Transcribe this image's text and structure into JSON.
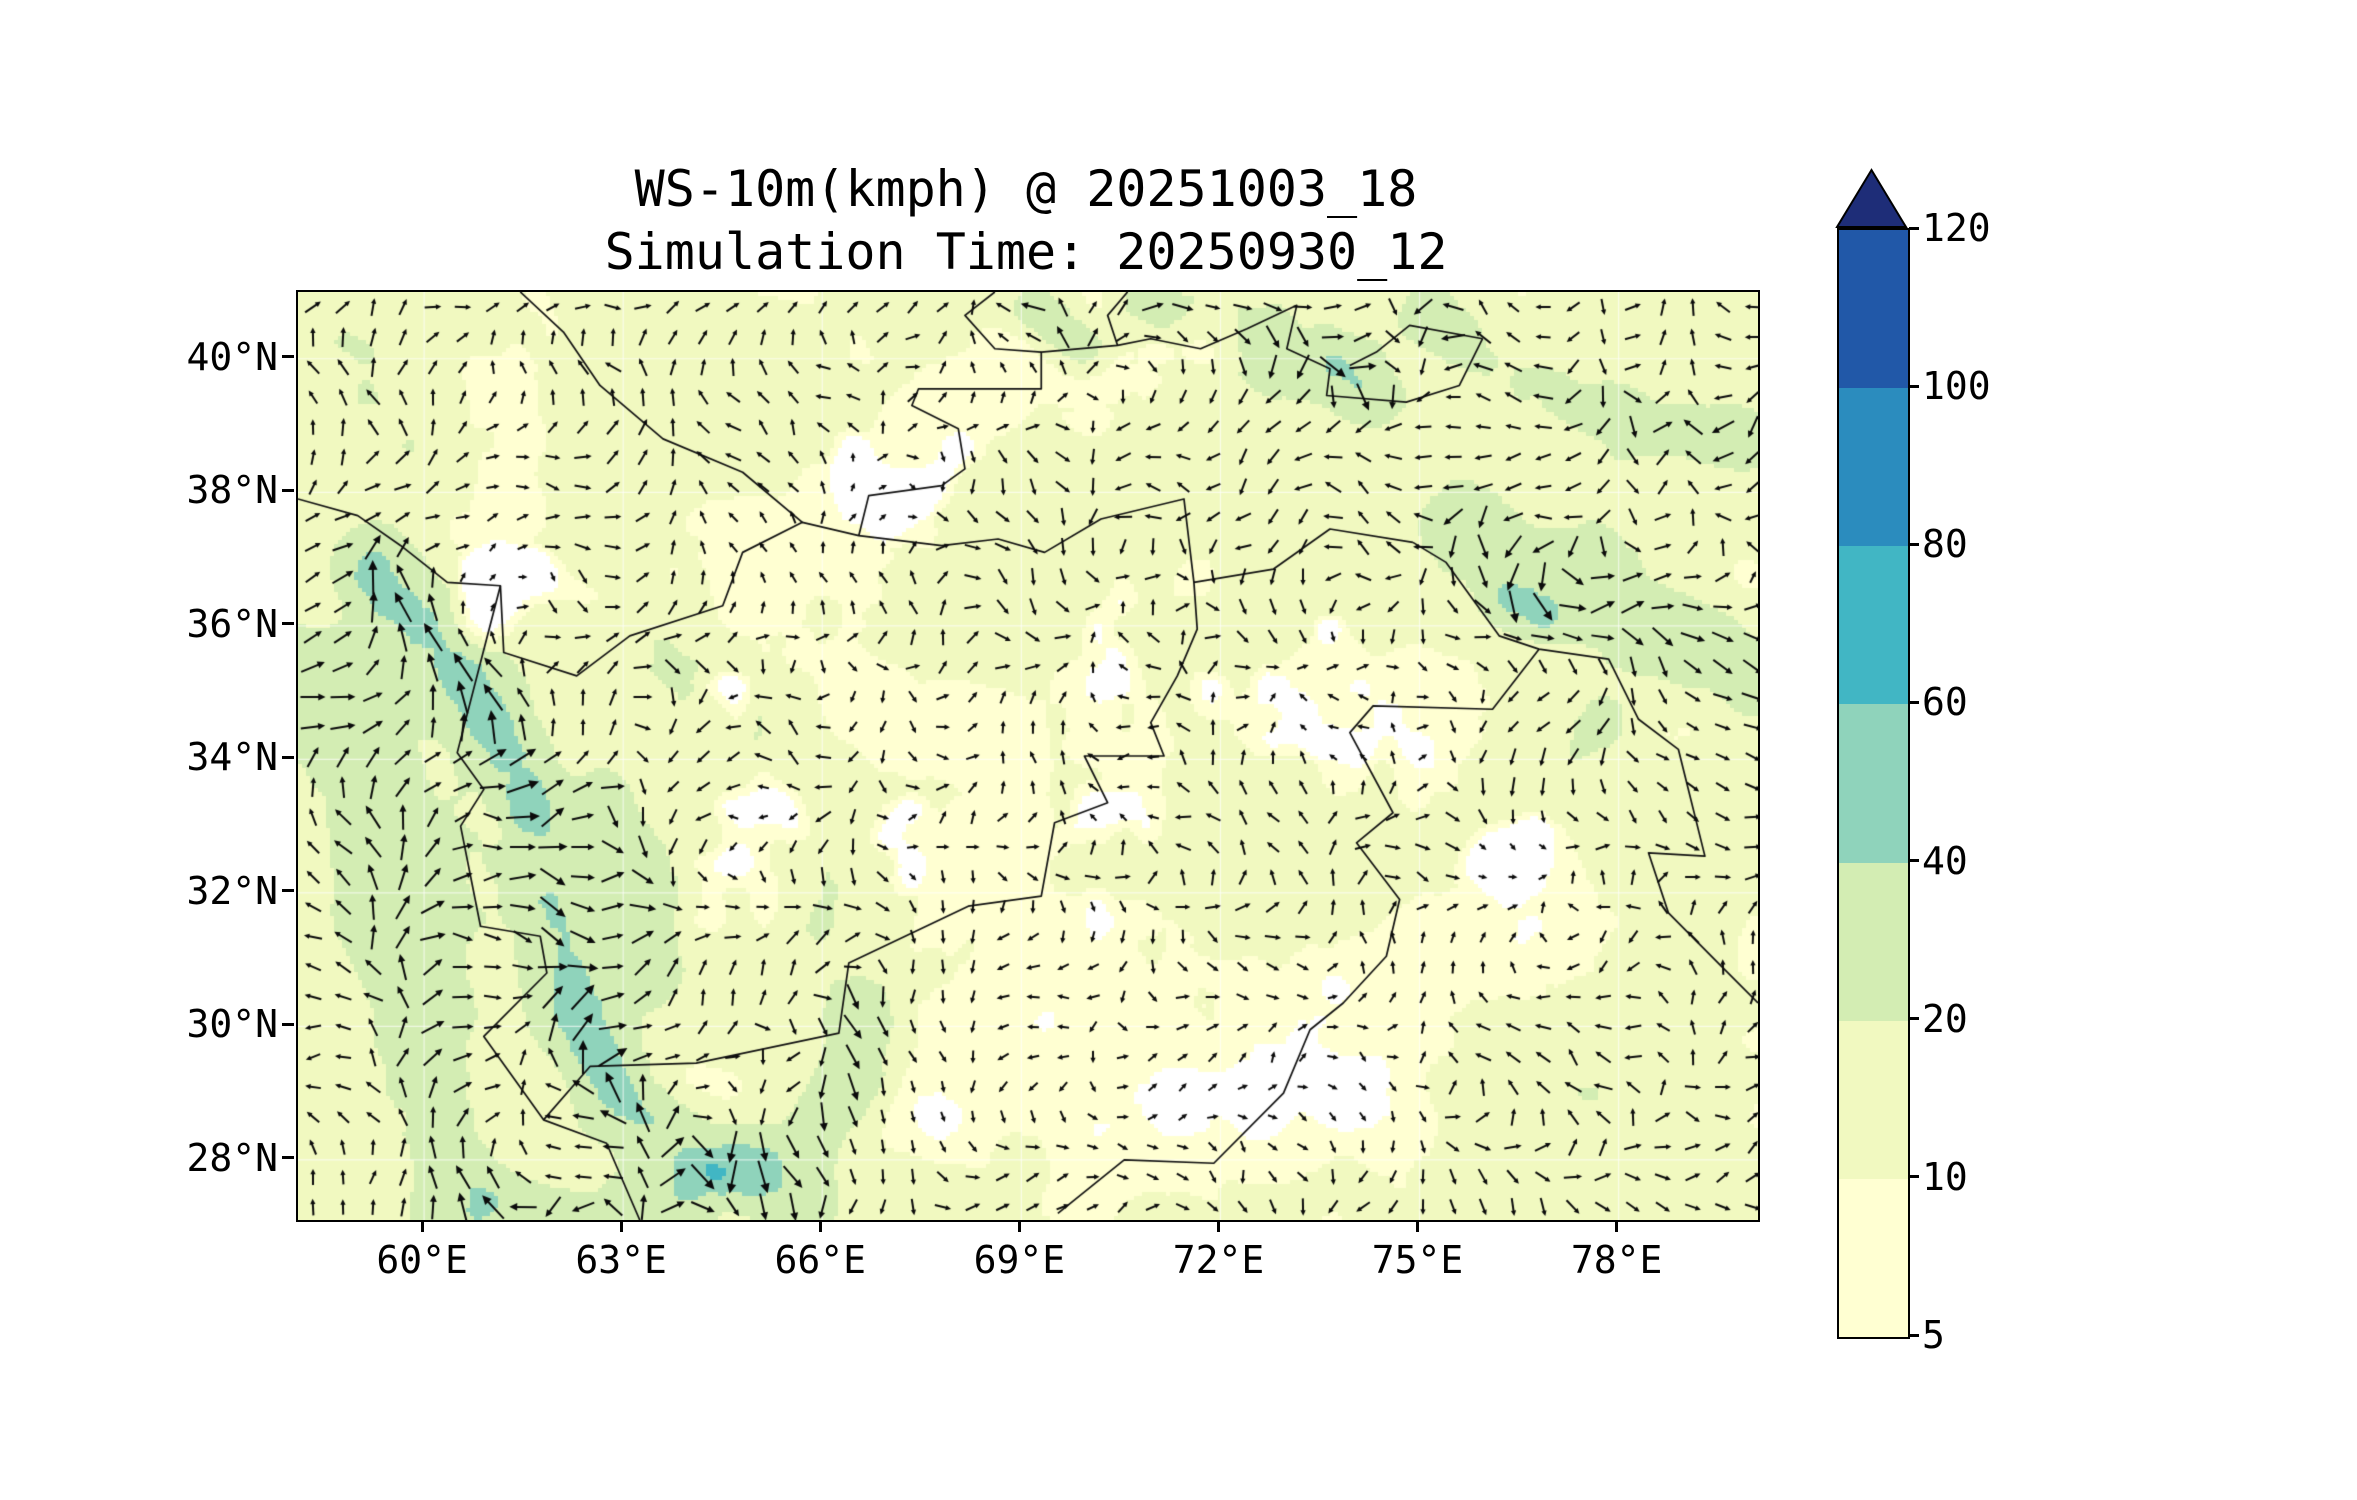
{
  "title": {
    "line1": "WS-10m(kmph) @ 20251003_18",
    "line2": "Simulation Time: 20250930_12"
  },
  "axes": {
    "x_tick_labels": [
      "60°E",
      "63°E",
      "66°E",
      "69°E",
      "72°E",
      "75°E",
      "78°E"
    ],
    "y_tick_labels": [
      "40°N",
      "38°N",
      "36°N",
      "34°N",
      "32°N",
      "30°N",
      "28°N"
    ]
  },
  "colorbar": {
    "tick_labels": [
      "120",
      "100",
      "80",
      "60",
      "40",
      "20",
      "10",
      "5"
    ],
    "colors": [
      "#ffffd2",
      "#f1f9c0",
      "#d3edb3",
      "#8fd3bb",
      "#41b6c4",
      "#2b8cbe",
      "#2158a8"
    ],
    "extend_color": "#1e2d78"
  },
  "chart_data": {
    "type": "heatmap",
    "subtype": "filled-contour 10m wind speed map with quiver wind-direction arrows and political boundaries",
    "title": "WS-10m(kmph) @ 20251003_18",
    "subtitle": "Simulation Time: 20250930_12",
    "variable": "10 m wind speed",
    "units": "kmph",
    "x_range_deg_east": [
      58.1,
      80.1
    ],
    "y_range_deg_north": [
      27.1,
      41.0
    ],
    "x_ticks_deg_east": [
      60,
      63,
      66,
      69,
      72,
      75,
      78
    ],
    "y_ticks_deg_north": [
      40,
      38,
      36,
      34,
      32,
      30,
      28
    ],
    "contour_levels_kmph": [
      5,
      10,
      20,
      40,
      60,
      80,
      100,
      120
    ],
    "under_color": "#ffffff",
    "grid": true,
    "legend_position": "right-colorbar-extend-max",
    "arrow_color": "#0b0b0b",
    "boundary_color": "#111111",
    "high_wind_bands": [
      {
        "path": [
          [
            59.3,
            36.8
          ],
          [
            60.2,
            35.6
          ],
          [
            61.0,
            34.5
          ],
          [
            61.6,
            33.2
          ],
          [
            61.9,
            31.8
          ],
          [
            62.3,
            30.2
          ],
          [
            63.0,
            28.8
          ],
          [
            64.2,
            27.9
          ],
          [
            65.6,
            27.4
          ]
        ],
        "width_deg": 0.55,
        "peak_kmph": 34
      },
      {
        "path": [
          [
            58.2,
            35.2
          ],
          [
            59.2,
            33.6
          ],
          [
            59.7,
            32.0
          ],
          [
            59.9,
            30.2
          ],
          [
            60.3,
            28.4
          ],
          [
            60.4,
            27.2
          ]
        ],
        "width_deg": 0.75,
        "peak_kmph": 18
      },
      {
        "path": [
          [
            61.0,
            27.4
          ],
          [
            62.5,
            27.05
          ],
          [
            64.3,
            27.6
          ],
          [
            65.8,
            28.4
          ],
          [
            66.5,
            29.3
          ],
          [
            66.6,
            30.2
          ]
        ],
        "width_deg": 0.5,
        "peak_kmph": 24
      },
      {
        "path": [
          [
            63.5,
            30.8
          ],
          [
            63.1,
            32.2
          ],
          [
            62.7,
            33.5
          ]
        ],
        "width_deg": 0.45,
        "peak_kmph": 16
      },
      {
        "path": [
          [
            75.6,
            37.6
          ],
          [
            76.6,
            36.9
          ],
          [
            77.7,
            36.3
          ],
          [
            78.9,
            35.7
          ],
          [
            79.9,
            35.2
          ]
        ],
        "width_deg": 0.6,
        "peak_kmph": 22
      },
      {
        "path": [
          [
            75.2,
            40.6
          ],
          [
            76.2,
            39.9
          ],
          [
            77.3,
            39.4
          ],
          [
            78.6,
            39.0
          ],
          [
            79.9,
            38.8
          ]
        ],
        "width_deg": 0.5,
        "peak_kmph": 17
      },
      {
        "path": [
          [
            70.8,
            40.9
          ],
          [
            71.9,
            40.4
          ],
          [
            73.1,
            40.0
          ]
        ],
        "width_deg": 0.45,
        "peak_kmph": 13
      },
      {
        "path": [
          [
            63.8,
            35.2
          ],
          [
            64.8,
            34.3
          ],
          [
            65.5,
            33.2
          ],
          [
            65.8,
            32.0
          ]
        ],
        "width_deg": 0.85,
        "peak_kmph": 10
      },
      {
        "path": [
          [
            65.9,
            36.3
          ],
          [
            67.4,
            35.9
          ],
          [
            69.0,
            36.1
          ]
        ],
        "width_deg": 0.7,
        "peak_kmph": 8
      },
      {
        "path": [
          [
            75.8,
            33.1
          ],
          [
            76.8,
            33.9
          ],
          [
            77.8,
            34.6
          ]
        ],
        "width_deg": 0.55,
        "peak_kmph": 13
      },
      {
        "path": [
          [
            69.2,
            40.7
          ],
          [
            69.9,
            40.2
          ]
        ],
        "width_deg": 0.35,
        "peak_kmph": 24
      },
      {
        "path": [
          [
            73.8,
            39.9
          ],
          [
            74.4,
            39.4
          ]
        ],
        "width_deg": 0.35,
        "peak_kmph": 22
      },
      {
        "path": [
          [
            58.2,
            40.9
          ],
          [
            59.0,
            39.7
          ],
          [
            59.6,
            38.5
          ]
        ],
        "width_deg": 1.1,
        "peak_kmph": 8
      },
      {
        "path": [
          [
            76.3,
            36.4
          ],
          [
            76.9,
            36.1
          ]
        ],
        "width_deg": 0.3,
        "peak_kmph": 26
      }
    ],
    "boundaries": [
      [
        [
          58.1,
          37.9
        ],
        [
          59.0,
          37.65
        ],
        [
          59.65,
          37.2
        ],
        [
          60.35,
          36.65
        ],
        [
          61.15,
          36.6
        ],
        [
          61.2,
          35.6
        ],
        [
          62.3,
          35.25
        ],
        [
          63.1,
          35.85
        ],
        [
          64.5,
          36.3
        ],
        [
          64.8,
          37.1
        ],
        [
          65.7,
          37.55
        ],
        [
          66.55,
          37.35
        ],
        [
          67.8,
          37.2
        ],
        [
          68.65,
          37.3
        ],
        [
          69.35,
          37.1
        ],
        [
          70.2,
          37.6
        ],
        [
          71.45,
          37.9
        ],
        [
          71.6,
          36.65
        ],
        [
          72.8,
          36.85
        ],
        [
          73.65,
          37.45
        ],
        [
          74.9,
          37.25
        ]
      ],
      [
        [
          61.15,
          36.6
        ],
        [
          60.85,
          35.45
        ],
        [
          60.5,
          34.1
        ],
        [
          60.9,
          33.55
        ],
        [
          60.55,
          33.0
        ],
        [
          60.85,
          31.5
        ],
        [
          61.75,
          31.35
        ],
        [
          61.85,
          30.8
        ],
        [
          60.9,
          29.85
        ],
        [
          61.8,
          28.6
        ],
        [
          62.75,
          28.25
        ],
        [
          63.25,
          27.1
        ]
      ],
      [
        [
          71.6,
          36.65
        ],
        [
          71.65,
          35.95
        ],
        [
          71.35,
          35.25
        ],
        [
          70.95,
          34.55
        ],
        [
          71.15,
          34.05
        ],
        [
          69.95,
          34.05
        ],
        [
          70.3,
          33.35
        ],
        [
          69.5,
          33.05
        ],
        [
          69.3,
          31.95
        ],
        [
          68.2,
          31.8
        ],
        [
          66.4,
          30.95
        ],
        [
          66.25,
          29.9
        ],
        [
          64.1,
          29.45
        ],
        [
          62.5,
          29.4
        ],
        [
          61.8,
          28.6
        ]
      ],
      [
        [
          76.8,
          35.65
        ],
        [
          76.1,
          34.75
        ],
        [
          74.3,
          34.8
        ],
        [
          73.95,
          34.4
        ],
        [
          74.6,
          33.2
        ],
        [
          74.05,
          32.75
        ],
        [
          74.7,
          31.9
        ],
        [
          74.5,
          31.05
        ],
        [
          73.85,
          30.35
        ],
        [
          73.35,
          29.95
        ],
        [
          72.95,
          29.0
        ],
        [
          71.9,
          27.95
        ],
        [
          70.55,
          28.0
        ],
        [
          69.55,
          27.2
        ]
      ],
      [
        [
          66.55,
          37.35
        ],
        [
          66.7,
          37.95
        ],
        [
          67.8,
          38.1
        ],
        [
          68.15,
          38.35
        ],
        [
          68.05,
          38.95
        ],
        [
          67.35,
          39.3
        ],
        [
          67.45,
          39.55
        ],
        [
          68.55,
          39.55
        ],
        [
          69.3,
          39.55
        ],
        [
          69.3,
          40.1
        ],
        [
          70.45,
          40.2
        ],
        [
          70.95,
          40.3
        ],
        [
          71.7,
          40.15
        ],
        [
          72.4,
          40.45
        ],
        [
          73.15,
          40.8
        ],
        [
          73.0,
          40.15
        ],
        [
          73.65,
          39.85
        ],
        [
          73.6,
          39.45
        ],
        [
          74.8,
          39.35
        ],
        [
          75.6,
          39.6
        ],
        [
          75.95,
          40.3
        ]
      ],
      [
        [
          70.45,
          40.2
        ],
        [
          70.3,
          40.65
        ],
        [
          70.6,
          41.0
        ]
      ],
      [
        [
          69.3,
          40.1
        ],
        [
          68.6,
          40.15
        ],
        [
          68.15,
          40.65
        ],
        [
          68.6,
          41.0
        ]
      ],
      [
        [
          74.9,
          37.25
        ],
        [
          75.4,
          36.95
        ],
        [
          76.2,
          35.85
        ],
        [
          76.8,
          35.65
        ],
        [
          77.85,
          35.5
        ],
        [
          78.3,
          34.6
        ],
        [
          78.9,
          34.15
        ],
        [
          79.3,
          32.55
        ],
        [
          78.45,
          32.6
        ],
        [
          78.75,
          31.7
        ],
        [
          79.55,
          30.9
        ],
        [
          80.1,
          30.35
        ]
      ],
      [
        [
          65.7,
          37.55
        ],
        [
          64.8,
          38.3
        ],
        [
          63.6,
          38.8
        ],
        [
          62.65,
          39.6
        ],
        [
          62.1,
          40.4
        ],
        [
          61.45,
          41.0
        ]
      ],
      [
        [
          75.95,
          40.3
        ],
        [
          74.85,
          40.5
        ],
        [
          74.35,
          40.1
        ],
        [
          73.95,
          39.9
        ]
      ]
    ]
  }
}
